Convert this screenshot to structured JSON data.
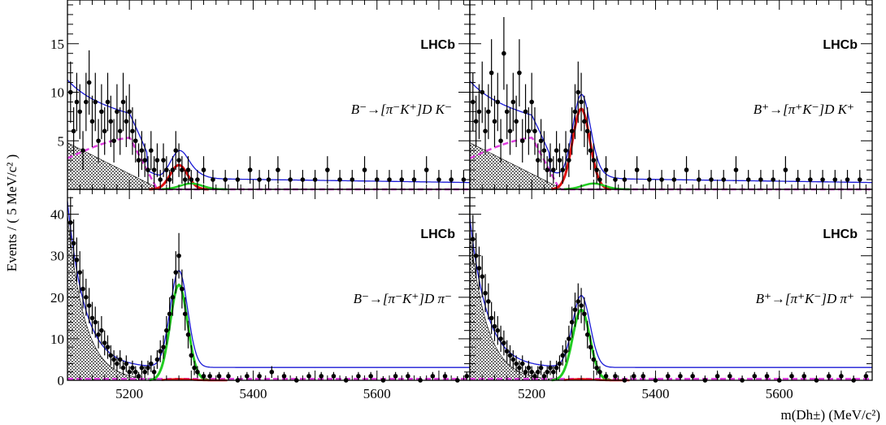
{
  "figure": {
    "ylabel": "Events / ( 5 MeV/c² )",
    "xlabel": "m(Dh±) (MeV/c²)",
    "xlim": [
      5100,
      5750
    ],
    "xticks": [
      5200,
      5400,
      5600
    ],
    "colors": {
      "total_fit": "#1a1ad6",
      "signal_K": "#e01010",
      "signal_pi": "#22cc22",
      "combinatorial": "#e040e0",
      "partially_reconstructed": "#000000",
      "data": "#000000"
    }
  },
  "chart_data": [
    {
      "type": "scatter",
      "panel": "top-left",
      "label": "LHCb",
      "decay": "B⁻→[π⁻K⁺]D K⁻",
      "ylim": [
        0,
        19.5
      ],
      "yticks": [
        5,
        10,
        15
      ],
      "signal_peak": {
        "mass": 5280,
        "height": 2.5,
        "sigma": 14
      },
      "points": [
        [
          5105,
          10
        ],
        [
          5110,
          6
        ],
        [
          5115,
          9
        ],
        [
          5120,
          8
        ],
        [
          5125,
          4
        ],
        [
          5130,
          9
        ],
        [
          5135,
          11
        ],
        [
          5140,
          7
        ],
        [
          5145,
          9
        ],
        [
          5150,
          5
        ],
        [
          5155,
          8
        ],
        [
          5160,
          6
        ],
        [
          5165,
          9
        ],
        [
          5170,
          7
        ],
        [
          5175,
          5
        ],
        [
          5180,
          8
        ],
        [
          5185,
          6
        ],
        [
          5190,
          9
        ],
        [
          5195,
          7
        ],
        [
          5200,
          8
        ],
        [
          5205,
          6
        ],
        [
          5210,
          5
        ],
        [
          5215,
          3
        ],
        [
          5220,
          4
        ],
        [
          5225,
          3
        ],
        [
          5230,
          2
        ],
        [
          5235,
          4
        ],
        [
          5240,
          2
        ],
        [
          5245,
          3
        ],
        [
          5250,
          1
        ],
        [
          5255,
          3
        ],
        [
          5260,
          2
        ],
        [
          5265,
          1
        ],
        [
          5270,
          2
        ],
        [
          5275,
          4
        ],
        [
          5280,
          3
        ],
        [
          5285,
          2
        ],
        [
          5290,
          1
        ],
        [
          5295,
          2
        ],
        [
          5300,
          1
        ],
        [
          5310,
          1
        ],
        [
          5320,
          2
        ],
        [
          5335,
          1
        ],
        [
          5355,
          1
        ],
        [
          5375,
          1
        ],
        [
          5395,
          2
        ],
        [
          5410,
          1
        ],
        [
          5425,
          1
        ],
        [
          5440,
          2
        ],
        [
          5460,
          1
        ],
        [
          5480,
          1
        ],
        [
          5500,
          1
        ],
        [
          5520,
          2
        ],
        [
          5540,
          1
        ],
        [
          5560,
          1
        ],
        [
          5580,
          2
        ],
        [
          5600,
          1
        ],
        [
          5620,
          1
        ],
        [
          5640,
          1
        ],
        [
          5660,
          1
        ],
        [
          5680,
          2
        ],
        [
          5700,
          1
        ],
        [
          5720,
          1
        ],
        [
          5740,
          1
        ]
      ]
    },
    {
      "type": "scatter",
      "panel": "top-right",
      "label": "LHCb",
      "decay": "B⁺→[π⁺K⁻]D K⁺",
      "ylim": [
        0,
        19.5
      ],
      "yticks": [
        5,
        10,
        15
      ],
      "signal_peak": {
        "mass": 5280,
        "height": 8.3,
        "sigma": 14
      },
      "points": [
        [
          5105,
          9
        ],
        [
          5110,
          7
        ],
        [
          5115,
          8
        ],
        [
          5120,
          10
        ],
        [
          5125,
          6
        ],
        [
          5130,
          8
        ],
        [
          5135,
          12
        ],
        [
          5140,
          7
        ],
        [
          5145,
          9
        ],
        [
          5150,
          5
        ],
        [
          5155,
          14
        ],
        [
          5160,
          8
        ],
        [
          5165,
          6
        ],
        [
          5170,
          9
        ],
        [
          5175,
          7
        ],
        [
          5180,
          12
        ],
        [
          5185,
          5
        ],
        [
          5190,
          8
        ],
        [
          5195,
          6
        ],
        [
          5200,
          9
        ],
        [
          5205,
          6
        ],
        [
          5210,
          3
        ],
        [
          5215,
          5
        ],
        [
          5220,
          4
        ],
        [
          5225,
          2
        ],
        [
          5230,
          3
        ],
        [
          5235,
          2
        ],
        [
          5240,
          4
        ],
        [
          5245,
          3
        ],
        [
          5250,
          2
        ],
        [
          5255,
          4
        ],
        [
          5260,
          3
        ],
        [
          5265,
          6
        ],
        [
          5270,
          8
        ],
        [
          5275,
          10
        ],
        [
          5280,
          9
        ],
        [
          5285,
          7
        ],
        [
          5290,
          6
        ],
        [
          5295,
          4
        ],
        [
          5300,
          3
        ],
        [
          5305,
          2
        ],
        [
          5310,
          1
        ],
        [
          5320,
          2
        ],
        [
          5335,
          1
        ],
        [
          5350,
          1
        ],
        [
          5370,
          2
        ],
        [
          5390,
          1
        ],
        [
          5410,
          1
        ],
        [
          5430,
          1
        ],
        [
          5450,
          2
        ],
        [
          5470,
          1
        ],
        [
          5490,
          1
        ],
        [
          5510,
          1
        ],
        [
          5530,
          2
        ],
        [
          5550,
          1
        ],
        [
          5570,
          1
        ],
        [
          5590,
          1
        ],
        [
          5610,
          2
        ],
        [
          5630,
          1
        ],
        [
          5650,
          1
        ],
        [
          5670,
          1
        ],
        [
          5690,
          1
        ],
        [
          5710,
          1
        ],
        [
          5730,
          1
        ]
      ]
    },
    {
      "type": "scatter",
      "panel": "bottom-left",
      "label": "LHCb",
      "decay": "B⁻→[π⁻K⁺]D π⁻",
      "ylim": [
        0,
        46
      ],
      "yticks": [
        0,
        10,
        20,
        30,
        40
      ],
      "signal_peak": {
        "mass": 5280,
        "height": 23,
        "sigma": 14
      },
      "points": [
        [
          5105,
          38
        ],
        [
          5110,
          33
        ],
        [
          5115,
          29
        ],
        [
          5120,
          26
        ],
        [
          5125,
          22
        ],
        [
          5130,
          20
        ],
        [
          5135,
          18
        ],
        [
          5140,
          15
        ],
        [
          5145,
          14
        ],
        [
          5150,
          11
        ],
        [
          5155,
          12
        ],
        [
          5160,
          9
        ],
        [
          5165,
          8
        ],
        [
          5170,
          6
        ],
        [
          5175,
          5
        ],
        [
          5180,
          4
        ],
        [
          5185,
          5
        ],
        [
          5190,
          3
        ],
        [
          5195,
          4
        ],
        [
          5200,
          2
        ],
        [
          5205,
          3
        ],
        [
          5210,
          2
        ],
        [
          5215,
          1
        ],
        [
          5220,
          3
        ],
        [
          5225,
          2
        ],
        [
          5230,
          3
        ],
        [
          5235,
          4
        ],
        [
          5240,
          2
        ],
        [
          5245,
          5
        ],
        [
          5250,
          7
        ],
        [
          5255,
          8
        ],
        [
          5260,
          12
        ],
        [
          5265,
          16
        ],
        [
          5270,
          20
        ],
        [
          5275,
          26
        ],
        [
          5280,
          30
        ],
        [
          5285,
          22
        ],
        [
          5290,
          16
        ],
        [
          5295,
          11
        ],
        [
          5300,
          6
        ],
        [
          5305,
          3
        ],
        [
          5310,
          2
        ],
        [
          5320,
          1
        ],
        [
          5330,
          1
        ],
        [
          5345,
          1
        ],
        [
          5360,
          1
        ],
        [
          5375,
          0
        ],
        [
          5390,
          1
        ],
        [
          5410,
          1
        ],
        [
          5430,
          2
        ],
        [
          5450,
          1
        ],
        [
          5470,
          0
        ],
        [
          5490,
          1
        ],
        [
          5510,
          1
        ],
        [
          5530,
          1
        ],
        [
          5550,
          0
        ],
        [
          5570,
          1
        ],
        [
          5590,
          1
        ],
        [
          5610,
          0
        ],
        [
          5630,
          1
        ],
        [
          5650,
          1
        ],
        [
          5670,
          0
        ],
        [
          5690,
          1
        ],
        [
          5710,
          1
        ],
        [
          5730,
          0
        ],
        [
          5745,
          1
        ]
      ]
    },
    {
      "type": "scatter",
      "panel": "bottom-right",
      "label": "LHCb",
      "decay": "B⁺→[π⁺K⁻]D π⁺",
      "ylim": [
        0,
        46
      ],
      "yticks": [
        0,
        10,
        20,
        30,
        40
      ],
      "signal_peak": {
        "mass": 5280,
        "height": 17,
        "sigma": 14
      },
      "points": [
        [
          5105,
          34
        ],
        [
          5110,
          30
        ],
        [
          5115,
          27
        ],
        [
          5120,
          25
        ],
        [
          5125,
          21
        ],
        [
          5130,
          19
        ],
        [
          5135,
          15
        ],
        [
          5140,
          13
        ],
        [
          5145,
          12
        ],
        [
          5150,
          10
        ],
        [
          5155,
          9
        ],
        [
          5160,
          7
        ],
        [
          5165,
          6
        ],
        [
          5170,
          5
        ],
        [
          5175,
          4
        ],
        [
          5180,
          3
        ],
        [
          5185,
          4
        ],
        [
          5190,
          2
        ],
        [
          5195,
          3
        ],
        [
          5200,
          2
        ],
        [
          5205,
          1
        ],
        [
          5210,
          2
        ],
        [
          5215,
          3
        ],
        [
          5220,
          1
        ],
        [
          5225,
          2
        ],
        [
          5230,
          3
        ],
        [
          5235,
          2
        ],
        [
          5240,
          3
        ],
        [
          5245,
          4
        ],
        [
          5250,
          6
        ],
        [
          5255,
          7
        ],
        [
          5260,
          10
        ],
        [
          5265,
          14
        ],
        [
          5270,
          17
        ],
        [
          5275,
          19
        ],
        [
          5280,
          18
        ],
        [
          5285,
          16
        ],
        [
          5290,
          11
        ],
        [
          5295,
          8
        ],
        [
          5300,
          5
        ],
        [
          5305,
          3
        ],
        [
          5310,
          2
        ],
        [
          5320,
          1
        ],
        [
          5335,
          1
        ],
        [
          5350,
          0
        ],
        [
          5365,
          1
        ],
        [
          5380,
          1
        ],
        [
          5400,
          0
        ],
        [
          5420,
          1
        ],
        [
          5440,
          1
        ],
        [
          5460,
          1
        ],
        [
          5480,
          0
        ],
        [
          5500,
          1
        ],
        [
          5520,
          1
        ],
        [
          5540,
          0
        ],
        [
          5560,
          1
        ],
        [
          5580,
          1
        ],
        [
          5600,
          0
        ],
        [
          5620,
          1
        ],
        [
          5640,
          1
        ],
        [
          5660,
          0
        ],
        [
          5680,
          1
        ],
        [
          5700,
          1
        ],
        [
          5720,
          0
        ],
        [
          5740,
          1
        ]
      ]
    }
  ]
}
